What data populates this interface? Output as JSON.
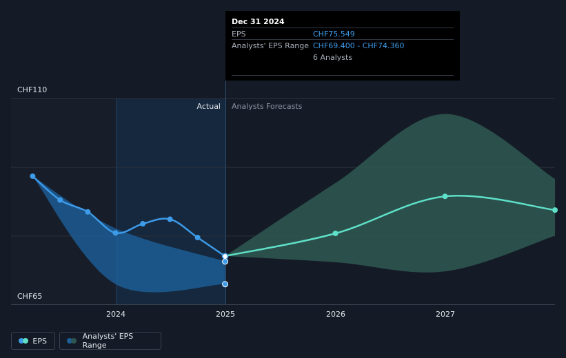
{
  "chart_data": {
    "type": "line",
    "y_labels": {
      "top": "CHF110",
      "bottom": "CHF65"
    },
    "ylim": [
      65,
      110
    ],
    "x_ticks": [
      "2024",
      "2025",
      "2026",
      "2027"
    ],
    "region_labels": {
      "actual": "Actual",
      "forecast": "Analysts Forecasts"
    },
    "series": [
      {
        "name": "EPS",
        "color": "#3d9be9",
        "points": [
          {
            "x": "2023-03-31",
            "y": 93.0
          },
          {
            "x": "2023-06-30",
            "y": 87.8
          },
          {
            "x": "2023-09-30",
            "y": 85.2
          },
          {
            "x": "2023-12-31",
            "y": 80.6
          },
          {
            "x": "2024-03-31",
            "y": 82.6
          },
          {
            "x": "2024-06-30",
            "y": 83.6
          },
          {
            "x": "2024-09-30",
            "y": 79.6
          },
          {
            "x": "2024-12-31",
            "y": 75.5
          }
        ]
      },
      {
        "name": "EPS forecast",
        "color": "#5fe0c8",
        "points": [
          {
            "x": "2024-12-31",
            "y": 75.549
          },
          {
            "x": "2025-12-31",
            "y": 80.5
          },
          {
            "x": "2026-12-31",
            "y": 88.6
          },
          {
            "x": "2027-12-31",
            "y": 85.6
          }
        ]
      }
    ],
    "past_range": {
      "color": "#1d5f9a",
      "upper": [
        {
          "x": "2023-03-31",
          "y": 93.0
        },
        {
          "x": "2023-12-31",
          "y": 81.6
        },
        {
          "x": "2024-12-31",
          "y": 74.4
        }
      ],
      "lower": [
        {
          "x": "2023-03-31",
          "y": 93.0
        },
        {
          "x": "2023-12-31",
          "y": 69.4
        },
        {
          "x": "2024-12-31",
          "y": 69.4
        }
      ],
      "markers": [
        {
          "x": "2024-12-31",
          "y": 74.36
        },
        {
          "x": "2024-12-31",
          "y": 69.4
        }
      ]
    },
    "forecast_range": {
      "color": "#2e5650",
      "upper": [
        {
          "x": "2024-12-31",
          "y": 75.549
        },
        {
          "x": "2025-12-31",
          "y": 91.5
        },
        {
          "x": "2026-12-31",
          "y": 106.6
        },
        {
          "x": "2027-12-31",
          "y": 92.4
        }
      ],
      "lower": [
        {
          "x": "2024-12-31",
          "y": 75.549
        },
        {
          "x": "2025-12-31",
          "y": 74.2
        },
        {
          "x": "2026-12-31",
          "y": 72.2
        },
        {
          "x": "2027-12-31",
          "y": 80.0
        }
      ]
    }
  },
  "tooltip": {
    "date": "Dec 31 2024",
    "eps_label": "EPS",
    "eps_value": "CHF75.549",
    "range_label": "Analysts' EPS Range",
    "range_value": "CHF69.400 - CHF74.360",
    "analysts": "6 Analysts"
  },
  "legend": [
    {
      "label": "EPS",
      "colors": [
        "#3d9be9",
        "#5fe0c8"
      ]
    },
    {
      "label": "Analysts' EPS Range",
      "colors": [
        "#1d5f9a",
        "#2e5650"
      ]
    }
  ]
}
